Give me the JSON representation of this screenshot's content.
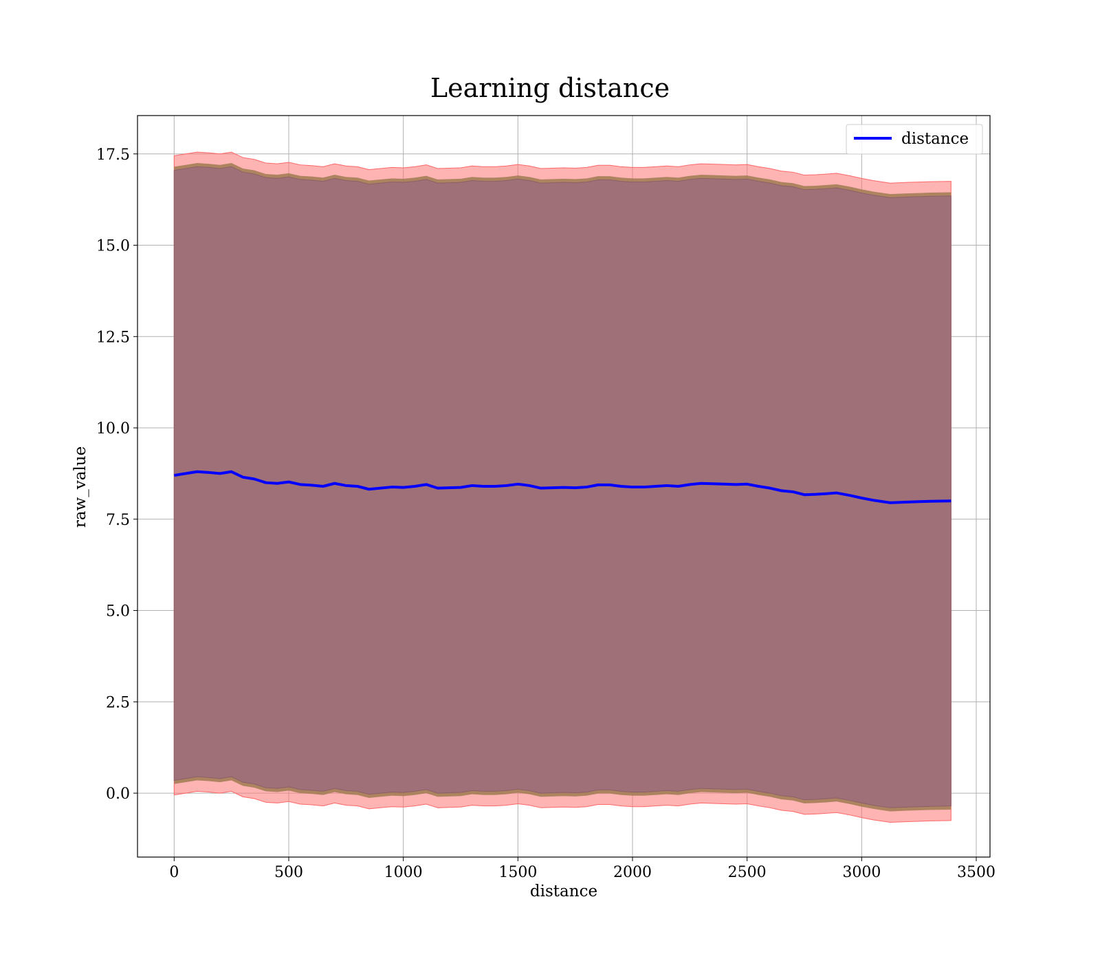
{
  "chart_data": {
    "type": "area",
    "title": "Learning distance",
    "xlabel": "distance",
    "ylabel": "raw_value",
    "xlim": [
      -160,
      3560
    ],
    "ylim": [
      -1.75,
      18.55
    ],
    "xticks": [
      0,
      500,
      1000,
      1500,
      2000,
      2500,
      3000,
      3500
    ],
    "yticks": [
      0.0,
      2.5,
      5.0,
      7.5,
      10.0,
      12.5,
      15.0,
      17.5
    ],
    "xtick_labels": [
      "0",
      "500",
      "1000",
      "1500",
      "2000",
      "2500",
      "3000",
      "3500"
    ],
    "ytick_labels": [
      "0.0",
      "2.5",
      "5.0",
      "7.5",
      "10.0",
      "12.5",
      "15.0",
      "17.5"
    ],
    "grid": true,
    "legend": {
      "position": "top-right",
      "entries": [
        "distance"
      ]
    },
    "colors": {
      "line": "#0000ff",
      "outer_band": "#ff7777",
      "mid_band": "#a07a50",
      "inner_band": "#a07078"
    },
    "x": [
      0,
      50,
      100,
      150,
      200,
      250,
      300,
      350,
      400,
      450,
      500,
      550,
      600,
      650,
      700,
      750,
      800,
      850,
      900,
      950,
      1000,
      1050,
      1100,
      1150,
      1200,
      1250,
      1300,
      1350,
      1400,
      1450,
      1500,
      1550,
      1600,
      1650,
      1700,
      1750,
      1800,
      1850,
      1900,
      1950,
      2000,
      2050,
      2100,
      2150,
      2200,
      2250,
      2300,
      2350,
      2400,
      2450,
      2500,
      2550,
      2600,
      2650,
      2700,
      2750,
      2800,
      2850,
      2890,
      2950,
      3000,
      3050,
      3125,
      3200,
      3250,
      3300,
      3390
    ],
    "series": [
      {
        "name": "distance",
        "values": [
          8.7,
          8.75,
          8.8,
          8.78,
          8.75,
          8.8,
          8.65,
          8.6,
          8.5,
          8.48,
          8.52,
          8.45,
          8.43,
          8.4,
          8.48,
          8.42,
          8.4,
          8.32,
          8.35,
          8.38,
          8.37,
          8.4,
          8.45,
          8.35,
          8.36,
          8.37,
          8.42,
          8.4,
          8.4,
          8.42,
          8.46,
          8.42,
          8.35,
          8.36,
          8.37,
          8.36,
          8.38,
          8.44,
          8.44,
          8.4,
          8.38,
          8.38,
          8.4,
          8.42,
          8.4,
          8.45,
          8.48,
          8.47,
          8.46,
          8.45,
          8.46,
          8.4,
          8.35,
          8.28,
          8.25,
          8.17,
          8.18,
          8.2,
          8.22,
          8.15,
          8.08,
          8.02,
          7.95,
          7.97,
          7.98,
          7.99,
          8.0
        ]
      }
    ],
    "band_halfwidths": {
      "outer": 8.75,
      "mid": 8.45,
      "inner": 8.35
    }
  }
}
